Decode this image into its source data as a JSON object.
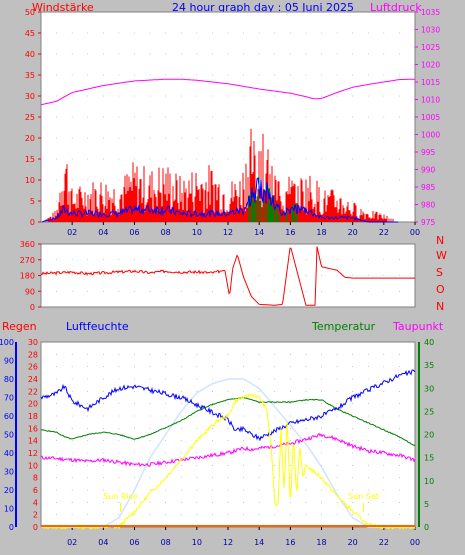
{
  "page_title": "24 hour graph day : 05 Juni 2025",
  "colors": {
    "red": "#ff0000",
    "magenta": "#ff00ff",
    "blue": "#0000ff",
    "green": "#008000",
    "yellow": "#ffff00",
    "lightblue": "#d0e4ff",
    "bg": "#c0c0c0",
    "plot_bg": "#ffffff"
  },
  "chart_data": [
    {
      "type": "line",
      "left_label": "Windstärke",
      "right_label": "Luftdruck",
      "y_left_ticks": [
        0,
        5,
        10,
        15,
        20,
        25,
        30,
        35,
        40,
        45,
        50
      ],
      "y_right_ticks": [
        975,
        980,
        985,
        990,
        995,
        1000,
        1005,
        1010,
        1015,
        1020,
        1025,
        1030,
        1035
      ],
      "x_ticks": [
        "02",
        "04",
        "06",
        "08",
        "10",
        "12",
        "14",
        "16",
        "18",
        "20",
        "22",
        "00"
      ],
      "ylim_left": [
        0,
        50
      ],
      "ylim_right": [
        975,
        1035
      ],
      "series": [
        {
          "name": "Luftdruck",
          "axis": "right",
          "x": [
            0,
            1,
            2,
            4,
            6,
            8,
            9,
            10,
            12,
            14,
            16,
            17,
            17.5,
            18,
            19,
            20,
            21,
            22,
            23,
            24
          ],
          "y": [
            1008.5,
            1009.5,
            1012,
            1014,
            1015.3,
            1015.8,
            1015.8,
            1015.5,
            1014.5,
            1013,
            1011.8,
            1010.8,
            1010.2,
            1010.3,
            1012,
            1013.5,
            1014.3,
            1015,
            1015.7,
            1015.8
          ]
        },
        {
          "x": [
            0,
            1,
            1.5,
            2,
            3,
            4,
            5,
            6,
            7,
            8,
            9,
            10,
            11,
            12,
            12.8,
            13.5,
            14,
            14.5,
            15,
            15.5,
            16,
            17,
            17.5,
            18,
            19,
            20,
            21,
            22,
            23,
            24
          ],
          "y": [
            0,
            3,
            22,
            8,
            10,
            11,
            10,
            15,
            13,
            15,
            11,
            14,
            14,
            10,
            12,
            24,
            22,
            20,
            14,
            10,
            12,
            12,
            12,
            8,
            8,
            5,
            3,
            2,
            0,
            0
          ]
        },
        {
          "x": [
            0,
            1,
            1.5,
            2,
            3,
            4,
            5,
            6,
            7,
            8,
            9,
            10,
            11,
            12,
            13,
            13.5,
            14,
            14.5,
            15,
            15.5,
            16,
            17,
            17.5,
            18,
            19,
            20,
            21,
            22,
            23,
            24
          ],
          "y": [
            0,
            1,
            3,
            2,
            2,
            2,
            2,
            3,
            3,
            3,
            2,
            2,
            2,
            2,
            3,
            6,
            8,
            7,
            4,
            2,
            3,
            3,
            2,
            1,
            1,
            1,
            0,
            0,
            0,
            0
          ]
        }
      ]
    },
    {
      "type": "line",
      "y_left_ticks": [
        0,
        90,
        180,
        270,
        360
      ],
      "y_right_labels": [
        "N",
        "W",
        "S",
        "O",
        "N"
      ],
      "x_ticks": [],
      "ylim": [
        0,
        360
      ],
      "series": [
        {
          "x": [
            0,
            1,
            2,
            3,
            4,
            5,
            6,
            7,
            8,
            9,
            10,
            11,
            11.8,
            12.1,
            12.3,
            12.6,
            13,
            13.5,
            14,
            15,
            15.5,
            16,
            17,
            17.6,
            17.7,
            18,
            18.5,
            19,
            19.5,
            20,
            21,
            22,
            23,
            24
          ],
          "y": [
            190,
            195,
            200,
            190,
            195,
            200,
            205,
            195,
            205,
            200,
            200,
            195,
            210,
            60,
            220,
            300,
            170,
            60,
            15,
            10,
            15,
            350,
            10,
            10,
            350,
            230,
            220,
            210,
            170,
            165,
            165,
            165,
            165,
            165
          ]
        }
      ]
    },
    {
      "type": "line",
      "left_label": "Regen",
      "left2_label": "Luftfeuchte",
      "right_labels": [
        "Temperatur",
        "Taupunkt"
      ],
      "y_regen_ticks": [
        0,
        2,
        4,
        6,
        8,
        10,
        12,
        14,
        16,
        18,
        20,
        22,
        24,
        26,
        28,
        30
      ],
      "y_humidity_ticks": [
        0,
        10,
        20,
        30,
        40,
        50,
        60,
        70,
        80,
        90,
        100
      ],
      "y_temp_ticks": [
        0,
        5,
        10,
        15,
        20,
        25,
        30,
        35,
        40
      ],
      "x_ticks": [
        "02",
        "04",
        "06",
        "08",
        "10",
        "12",
        "14",
        "16",
        "18",
        "20",
        "22",
        "00"
      ],
      "annotations": [
        "Sun Rise",
        "Sun Set"
      ],
      "ylim_humidity": [
        0,
        100
      ],
      "ylim_temp": [
        0,
        40
      ],
      "series": [
        {
          "name": "Luftfeuchte",
          "axis": "humidity",
          "x": [
            0,
            0.5,
            1,
            1.5,
            2,
            2.5,
            3,
            4,
            5,
            6,
            7,
            8,
            9,
            10,
            11,
            12,
            12.5,
            13,
            13.5,
            14,
            14.5,
            15,
            16,
            17,
            18,
            19,
            20,
            21,
            22,
            23,
            24
          ],
          "y": [
            70,
            71,
            72,
            76,
            68,
            66,
            64,
            70,
            75,
            76,
            74,
            72,
            70,
            66,
            62,
            58,
            52,
            53,
            50,
            48,
            50,
            52,
            56,
            58,
            60,
            64,
            70,
            74,
            78,
            82,
            84
          ]
        },
        {
          "name": "Temperatur",
          "axis": "temp",
          "x": [
            0,
            1,
            1.5,
            2,
            3,
            4,
            5,
            6,
            7,
            8,
            9,
            10,
            11,
            12,
            13,
            14,
            15,
            16,
            17,
            18,
            19,
            20,
            21,
            22,
            23,
            24
          ],
          "y": [
            21,
            20.5,
            19.5,
            19,
            20,
            20.5,
            20,
            19,
            20,
            21.5,
            23,
            25,
            26.5,
            27.5,
            28,
            27,
            27,
            27,
            27.5,
            27.5,
            25.5,
            24,
            22.5,
            21,
            19.5,
            17.5
          ]
        },
        {
          "name": "Taupunkt",
          "axis": "temp",
          "x": [
            0,
            1,
            2,
            3,
            4,
            5,
            6,
            7,
            8,
            9,
            10,
            11,
            12,
            12.5,
            13,
            13.5,
            14,
            15,
            16,
            17,
            18,
            19,
            20,
            21,
            22,
            23,
            24
          ],
          "y": [
            15,
            14.8,
            14.5,
            14.2,
            14.5,
            14,
            13.5,
            13.5,
            14,
            14.5,
            15,
            15.5,
            16,
            16.5,
            17,
            16.8,
            17,
            17.5,
            18,
            19,
            20,
            19,
            17.5,
            16.5,
            16,
            15.5,
            14.5
          ]
        },
        {
          "x": [
            0,
            1,
            2,
            3,
            4,
            5,
            6,
            7,
            8,
            9,
            10,
            11,
            12,
            13,
            14,
            15,
            16,
            17,
            18,
            19,
            20,
            21,
            22,
            23,
            24
          ],
          "y": [
            0,
            0,
            0,
            0,
            0,
            2,
            8,
            15,
            20,
            25,
            29,
            31,
            32,
            32,
            30,
            26,
            22,
            18,
            13,
            7,
            2,
            0,
            0,
            0,
            0
          ]
        },
        {
          "x": [
            0,
            5,
            5.2,
            6,
            7,
            8,
            9,
            10,
            11,
            11.5,
            12,
            12.5,
            13,
            13.5,
            14,
            14.5,
            14.8,
            15,
            15.2,
            15.4,
            15.6,
            15.8,
            16,
            16.2,
            16.4,
            16.6,
            16.8,
            17,
            18,
            19,
            20,
            20.5,
            21,
            22,
            24
          ],
          "y": [
            0,
            0,
            0.5,
            2.5,
            5.5,
            8,
            11,
            14,
            16.5,
            17.5,
            18,
            20.5,
            21,
            21.5,
            21,
            19,
            12,
            4,
            3,
            16,
            6,
            18,
            3,
            15,
            5,
            13,
            8,
            10,
            8,
            5,
            2.5,
            1.5,
            0.3,
            0,
            0
          ]
        },
        {
          "x": [
            0,
            24
          ],
          "y": [
            0,
            0
          ]
        }
      ]
    }
  ]
}
